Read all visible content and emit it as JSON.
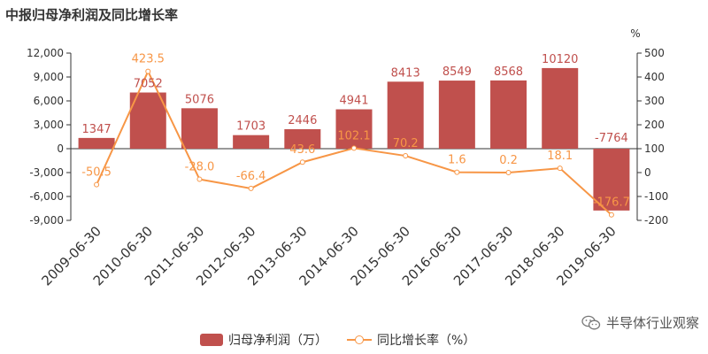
{
  "title": "中报归母净利润及同比增长率",
  "chart_data": {
    "type": "bar",
    "categories": [
      "2009-06-30",
      "2010-06-30",
      "2011-06-30",
      "2012-06-30",
      "2013-06-30",
      "2014-06-30",
      "2015-06-30",
      "2016-06-30",
      "2017-06-30",
      "2018-06-30",
      "2019-06-30"
    ],
    "series": [
      {
        "name": "归母净利润（万）",
        "type": "bar",
        "axis": "left",
        "color": "#c0504d",
        "values": [
          1347,
          7052,
          5076,
          1703,
          2446,
          4941,
          8413,
          8549,
          8568,
          10120,
          -7764
        ]
      },
      {
        "name": "同比增长率（%）",
        "type": "line",
        "axis": "right",
        "color": "#f79646",
        "values": [
          -50.5,
          423.5,
          -28.0,
          -66.4,
          43.6,
          102.1,
          70.2,
          1.6,
          0.2,
          18.1,
          -176.7
        ]
      }
    ],
    "series_labels": [
      [
        "1347",
        "7052",
        "5076",
        "1703",
        "2446",
        "4941",
        "8413",
        "8549",
        "8568",
        "10120",
        "-7764"
      ],
      [
        "-50.5",
        "423.5",
        "-28.0",
        "-66.4",
        "43.6",
        "102.1",
        "70.2",
        "1.6",
        "0.2",
        "18.1",
        "-176.7"
      ]
    ],
    "y_left": {
      "ylim": [
        -9000,
        12000
      ],
      "ticks": [
        "12,000",
        "9,000",
        "6,000",
        "3,000",
        "0",
        "-3,000",
        "-6,000",
        "-9,000"
      ],
      "tick_values": [
        12000,
        9000,
        6000,
        3000,
        0,
        -3000,
        -6000,
        -9000
      ]
    },
    "y_right": {
      "ylim": [
        -200,
        500
      ],
      "unit": "%",
      "ticks": [
        "500",
        "400",
        "300",
        "200",
        "100",
        "0",
        "-100",
        "-200"
      ],
      "tick_values": [
        500,
        400,
        300,
        200,
        100,
        0,
        -100,
        -200
      ]
    },
    "grid": false,
    "legend": "bottom"
  },
  "legend": {
    "bar_label": "归母净利润（万）",
    "line_label": "同比增长率（%）"
  },
  "watermark": {
    "text": "半导体行业观察",
    "icon": "wechat-icon"
  }
}
